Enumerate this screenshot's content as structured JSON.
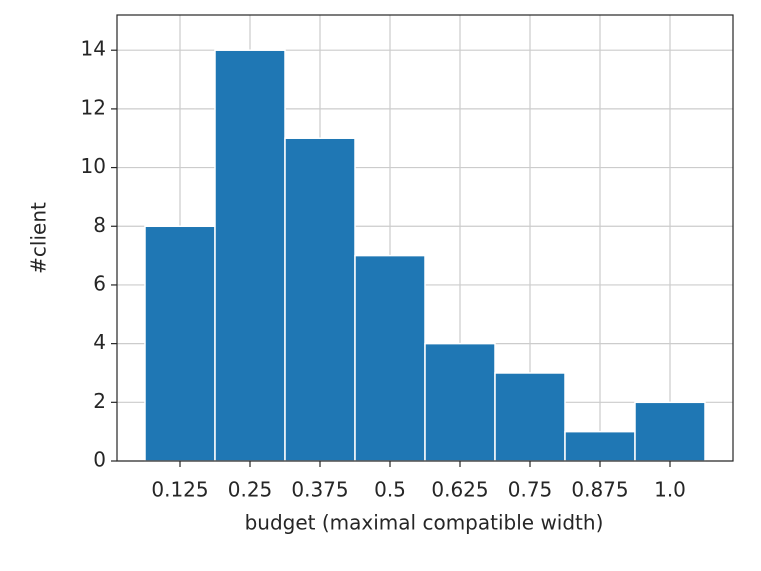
{
  "chart_data": {
    "type": "bar",
    "xlabel": "budget (maximal compatible width)",
    "ylabel": "#client",
    "categories": [
      "0.125",
      "0.25",
      "0.375",
      "0.5",
      "0.625",
      "0.75",
      "0.875",
      "1.0"
    ],
    "values": [
      8,
      14,
      11,
      7,
      4,
      3,
      1,
      2
    ],
    "color": "#1f77b4",
    "ylim": [
      0,
      15.2
    ],
    "yticks": [
      0,
      2,
      4,
      6,
      8,
      10,
      12,
      14
    ],
    "grid": true
  }
}
